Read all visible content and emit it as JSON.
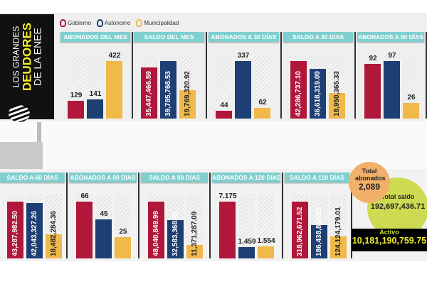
{
  "title": {
    "line1": "LOS GRANDES",
    "line2": "DEUDORES",
    "line3": "DE LA ENEE"
  },
  "legend": [
    {
      "name": "Gobierno",
      "color": "#b0173a"
    },
    {
      "name": "Autonomo",
      "color": "#1e3f73"
    },
    {
      "name": "Municipalidad",
      "color": "#f0b94a"
    }
  ],
  "chart_data": [
    {
      "type": "bar",
      "title": "ABONADOS DEL MES",
      "categories": [
        "Gobierno",
        "Autonomo",
        "Municipalidad"
      ],
      "values": [
        129,
        141,
        422
      ],
      "labels": [
        "129",
        "141",
        "422"
      ]
    },
    {
      "type": "bar",
      "title": "SALDO DEL MES",
      "categories": [
        "Gobierno",
        "Autonomo",
        "Municipalidad"
      ],
      "values": [
        35447466.59,
        39785768.53,
        19769320.92
      ],
      "labels": [
        "35,447,466.59",
        "39,785,768.53",
        "19,769,320.92"
      ]
    },
    {
      "type": "bar",
      "title": "ABONADOS A 30 DÍAS",
      "categories": [
        "Gobierno",
        "Autonomo",
        "Municipalidad"
      ],
      "values": [
        44,
        337,
        62
      ],
      "labels": [
        "44",
        "337",
        "62"
      ]
    },
    {
      "type": "bar",
      "title": "SALDO A 30 DÍAS",
      "categories": [
        "Gobierno",
        "Autonomo",
        "Municipalidad"
      ],
      "values": [
        42286737.1,
        36618319.09,
        18950365.33
      ],
      "labels": [
        "42,286,737.10",
        "36,618,319.09",
        "18,950,365.33"
      ]
    },
    {
      "type": "bar",
      "title": "ABONADOS A 60 DÍAS",
      "categories": [
        "Gobierno",
        "Autonomo",
        "Municipalidad"
      ],
      "values": [
        92,
        97,
        26
      ],
      "labels": [
        "92",
        "97",
        "26"
      ]
    },
    {
      "type": "bar",
      "title": "SALDO A 60 DÍAS",
      "categories": [
        "Gobierno",
        "Autonomo",
        "Municipalidad"
      ],
      "values": [
        43287982.5,
        42043327.26,
        18482284.36
      ],
      "labels": [
        "43,287,982.50",
        "42,043,327.26",
        "18,482,284.36"
      ]
    },
    {
      "type": "bar",
      "title": "ABONADOS A 90 DÍAS",
      "categories": [
        "Gobierno",
        "Autonomo",
        "Municipalidad"
      ],
      "values": [
        66,
        45,
        25
      ],
      "labels": [
        "66",
        "45",
        "25"
      ]
    },
    {
      "type": "bar",
      "title": "SALDO A 90 DÍAS",
      "categories": [
        "Gobierno",
        "Autonomo",
        "Municipalidad"
      ],
      "values": [
        48040849.99,
        32583368.41,
        11371287.09
      ],
      "labels": [
        "48,040,849.99",
        "32,583,368.41",
        "11,371,287.09"
      ]
    },
    {
      "type": "bar",
      "title": "ABONADOS A 120 DÍAS",
      "categories": [
        "Gobierno",
        "Autonomo",
        "Municipalidad"
      ],
      "values": [
        7175,
        1459,
        1554
      ],
      "labels": [
        "7.175",
        "1.459",
        "1.554"
      ]
    },
    {
      "type": "bar",
      "title": "SALDO A 120 DÍAS",
      "categories": [
        "Gobierno",
        "Autonomo",
        "Municipalidad"
      ],
      "values": [
        318962671.52,
        186438832.05,
        124124179.01
      ],
      "labels": [
        "318,962,671.52",
        "186,438,832.05",
        "124,124,179.01"
      ]
    }
  ],
  "totals": {
    "abonados_label": "Total abonados",
    "abonados_value": "2,089",
    "saldo_label": "Total saldo",
    "saldo_value": "192,697,436.71",
    "activo_label": "Activo",
    "activo_value": "10,181,190,759.75"
  }
}
